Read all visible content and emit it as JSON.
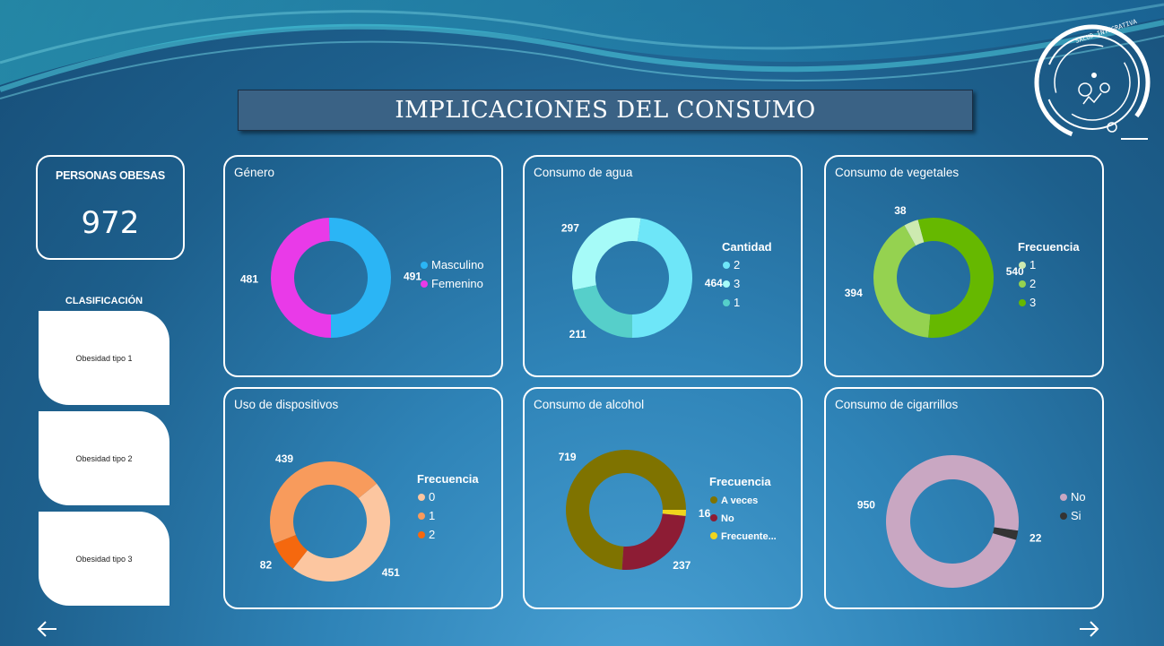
{
  "header": {
    "title": "IMPLICACIONES DEL CONSUMO"
  },
  "logo": {
    "icon": "salud-integrativa-logo",
    "text": "SALUD INTEGRATIVA"
  },
  "kpi": {
    "label": "PERSONAS OBESAS",
    "value": "972"
  },
  "classification": {
    "heading": "CLASIFICACIÓN",
    "buttons": [
      "Obesidad tipo 1",
      "Obesidad tipo 2",
      "Obesidad tipo 3"
    ]
  },
  "nav": {
    "back_icon": "arrow-left-icon",
    "forward_icon": "arrow-right-icon"
  },
  "chart_data": [
    {
      "id": "genero",
      "type": "pie",
      "title": "Género",
      "legend_title": "",
      "slices": [
        {
          "label": "Masculino",
          "value": 491,
          "color": "#2bb5f5"
        },
        {
          "label": "Femenino",
          "value": 481,
          "color": "#e93ae8"
        }
      ],
      "start_deg": 90
    },
    {
      "id": "agua",
      "type": "pie",
      "title": "Consumo de agua",
      "legend_title": "Cantidad",
      "slices": [
        {
          "label": "2",
          "value": 464,
          "color": "#6ee6f8"
        },
        {
          "label": "3",
          "value": 297,
          "color": "#a6fbf8"
        },
        {
          "label": "1",
          "value": 211,
          "color": "#56cfca"
        }
      ],
      "start_deg": 90
    },
    {
      "id": "vegetales",
      "type": "pie",
      "title": "Consumo de vegetales",
      "legend_title": "Frecuencia",
      "slices": [
        {
          "label": "1",
          "value": 38,
          "color": "#cdeab0"
        },
        {
          "label": "2",
          "value": 394,
          "color": "#95d250"
        },
        {
          "label": "3",
          "value": 540,
          "color": "#66b800"
        }
      ],
      "start_deg": 255
    },
    {
      "id": "dispositivos",
      "type": "pie",
      "title": "Uso de dispositivos",
      "legend_title": "Frecuencia",
      "slices": [
        {
          "label": "0",
          "value": 451,
          "color": "#fcc6a0"
        },
        {
          "label": "1",
          "value": 439,
          "color": "#f89b5c"
        },
        {
          "label": "2",
          "value": 82,
          "color": "#f5680e"
        }
      ],
      "start_deg": 128
    },
    {
      "id": "alcohol",
      "type": "pie",
      "title": "Consumo de alcohol",
      "legend_title": "Frecuencia",
      "slices": [
        {
          "label": "A veces",
          "value": 719,
          "color": "#7f7300"
        },
        {
          "label": "No",
          "value": 237,
          "color": "#8d1c34"
        },
        {
          "label": "Frecuente...",
          "value": 16,
          "color": "#f0d51c"
        }
      ],
      "start_deg": 0
    },
    {
      "id": "cigarrillos",
      "type": "pie",
      "title": "Consumo de cigarrillos",
      "legend_title": "",
      "slices": [
        {
          "label": "No",
          "value": 950,
          "color": "#c9a7c2"
        },
        {
          "label": "Si",
          "value": 22,
          "color": "#343434"
        }
      ],
      "start_deg": 8
    }
  ]
}
